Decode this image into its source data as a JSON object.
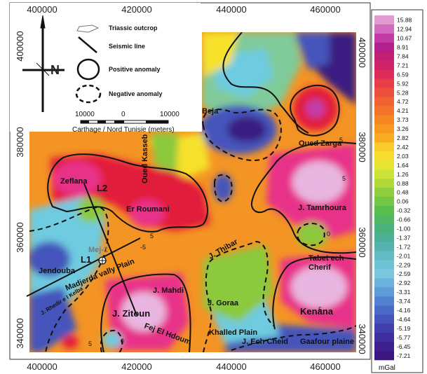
{
  "axes": {
    "x_ticks": [
      "400000",
      "420000",
      "440000",
      "460000"
    ],
    "y_ticks": [
      "400000",
      "380000",
      "360000",
      "340000"
    ]
  },
  "legend": {
    "triassic": "Triassic outcrop",
    "seismic": "Seismic line",
    "positive": "Positive anomaly",
    "negative": "Negative anomaly"
  },
  "scale_bar": {
    "left": "10000",
    "mid": "0",
    "right": "10000",
    "caption": "Carthage / Nord Tunisie  (meters)"
  },
  "north_arrow": {
    "label": "N"
  },
  "places": {
    "beja": "Beja",
    "oued_kasseb": "Oued Kasseb",
    "oued_zarga": "Oued Zarga",
    "zeflana": "Zeflana",
    "l2": "L2",
    "er_roumani": "Er Roumani",
    "j_tamrhoura": "J. Tamrhoura",
    "mej1": "Mej-1",
    "l1": "L1",
    "jendouba": "Jendouba",
    "j_thibar": "J. Thibar",
    "tabet_ech_cherif": "Tabet ech\nCherif",
    "madjerda": "Madjerda vally Plain",
    "j_mahdi": "J. Mahdi",
    "j_rhedir": "J. Rhedir e l Kelba",
    "j_zitoun": "J. Zitoun",
    "j_goraa": "J. Goraa",
    "kenana": "Kenana",
    "fej": "Fej El Hdoum",
    "khalled": "Khalled Plain",
    "j_ech_cheid": "J. Ech Cheid",
    "gaafour": "Gaafour plaine"
  },
  "contour_labels": [
    "5",
    "-5",
    "5",
    "5",
    "5",
    "0",
    "0",
    "5"
  ],
  "colorbar": {
    "unit": "mGal",
    "labels": [
      "15.88",
      "12.94",
      "10.67",
      "8.91",
      "7.84",
      "7.21",
      "6.59",
      "5.92",
      "5.28",
      "4.72",
      "4.21",
      "3.73",
      "3.26",
      "2.82",
      "2.42",
      "2.03",
      "1.64",
      "1.26",
      "0.88",
      "0.48",
      "0.06",
      "-0.32",
      "-0.66",
      "-1.00",
      "-1.37",
      "-1.72",
      "-2.01",
      "-2.29",
      "-2.59",
      "-2.92",
      "-3.31",
      "-3.74",
      "-4.16",
      "-4.64",
      "-5.19",
      "-5.77",
      "-6.45",
      "-7.21"
    ],
    "colors": [
      "#e39ad0",
      "#d46bc0",
      "#c23ca8",
      "#b31f8c",
      "#c22074",
      "#d0246a",
      "#de2c5a",
      "#e73e4a",
      "#ec503c",
      "#f06232",
      "#f37429",
      "#f58624",
      "#f79820",
      "#f9ab22",
      "#facb2a",
      "#f6dc2c",
      "#e6e532",
      "#cce236",
      "#b0d93a",
      "#92cf3f",
      "#72c746",
      "#58be4e",
      "#50b764",
      "#4cb27c",
      "#4cb096",
      "#54b3ae",
      "#62bbc4",
      "#6ec4d6",
      "#7ac8e0",
      "#6cb2de",
      "#5e9bd9",
      "#5282d2",
      "#4a6ac8",
      "#4454bb",
      "#413fae",
      "#3f2e9e",
      "#3d208e",
      "#3a1680"
    ],
    "anomaly_colors": {
      "high": "#e8b6e0",
      "pink": "#e8338a",
      "red": "#e21f3a",
      "orange": "#f39424",
      "yellow": "#f6e12a",
      "green": "#8bc93c",
      "cyan": "#6ecbe0",
      "blue": "#3f4ca8",
      "navy": "#3a1a80"
    }
  }
}
